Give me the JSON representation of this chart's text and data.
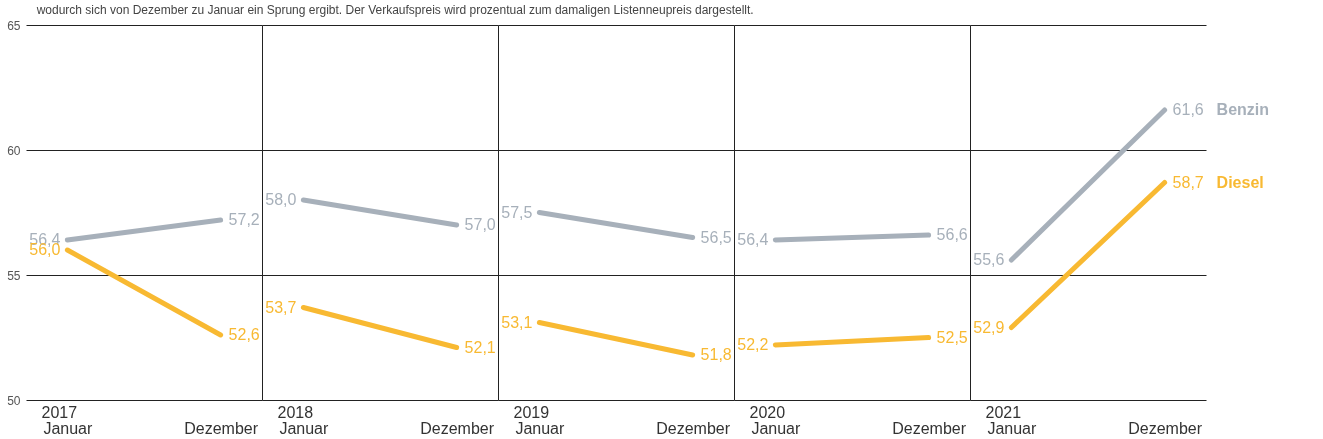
{
  "chart_data": [
    {
      "type": "line",
      "annotations": [
        "wodurch sich von Dezember zu Januar ein Sprung ergibt. Der Verkaufspreis wird prozentual zum damaligen Listenneupreis dargestellt."
      ],
      "xlabel": "2017",
      "categories": [
        "Januar",
        "Dezember"
      ],
      "ylim": [
        50,
        65
      ],
      "yticks": [
        50,
        55,
        60,
        65
      ],
      "grid": "y",
      "series": [
        {
          "color": "#a7b0ba",
          "values": [
            56.4,
            57.2
          ],
          "value_labels": [
            "56,4",
            "57,2"
          ]
        },
        {
          "color": "#f8b932",
          "values": [
            56.0,
            52.6
          ],
          "value_labels": [
            "56,0",
            "52,6"
          ]
        }
      ]
    },
    {
      "type": "line",
      "xlabel": "2018",
      "categories": [
        "Januar",
        "Dezember"
      ],
      "ylim": [
        50,
        65
      ],
      "yticks": [
        50,
        55,
        60,
        65
      ],
      "grid": "y",
      "tick_labels": "x",
      "series": [
        {
          "color": "#a7b0ba",
          "values": [
            58.0,
            57.0
          ],
          "value_labels": [
            "58,0",
            "57,0"
          ]
        },
        {
          "color": "#f8b932",
          "values": [
            53.7,
            52.1
          ],
          "value_labels": [
            "53,7",
            "52,1"
          ]
        }
      ]
    },
    {
      "type": "line",
      "xlabel": "2019",
      "categories": [
        "Januar",
        "Dezember"
      ],
      "ylim": [
        50,
        65
      ],
      "yticks": [
        50,
        55,
        60,
        65
      ],
      "grid": "y",
      "tick_labels": "x",
      "series": [
        {
          "color": "#a7b0ba",
          "values": [
            57.5,
            56.5
          ],
          "value_labels": [
            "57,5",
            "56,5"
          ]
        },
        {
          "color": "#f8b932",
          "values": [
            53.1,
            51.8
          ],
          "value_labels": [
            "53,1",
            "51,8"
          ]
        }
      ]
    },
    {
      "type": "line",
      "xlabel": "2020",
      "categories": [
        "Januar",
        "Dezember"
      ],
      "ylim": [
        50,
        65
      ],
      "yticks": [
        50,
        55,
        60,
        65
      ],
      "grid": "y",
      "tick_labels": "x",
      "series": [
        {
          "color": "#a7b0ba",
          "values": [
            56.4,
            56.6
          ],
          "value_labels": [
            "56,4",
            "56,6"
          ]
        },
        {
          "color": "#f8b932",
          "values": [
            52.2,
            52.5
          ],
          "value_labels": [
            "52,2",
            "52,5"
          ]
        }
      ]
    },
    {
      "type": "line",
      "xlabel": "2021",
      "categories": [
        "Januar",
        "Dezember"
      ],
      "ylim": [
        50,
        65
      ],
      "yticks": [
        50,
        55,
        60,
        65
      ],
      "grid": "y",
      "tick_labels": "x",
      "series": [
        {
          "name": "Benzin",
          "color": "#a7b0ba",
          "values": [
            55.6,
            61.6
          ],
          "value_labels": [
            "55,6",
            "61,6"
          ]
        },
        {
          "name": "Diesel",
          "color": "#f8b932",
          "values": [
            52.9,
            58.7
          ],
          "value_labels": [
            "52,9",
            "58,7"
          ]
        }
      ]
    }
  ]
}
